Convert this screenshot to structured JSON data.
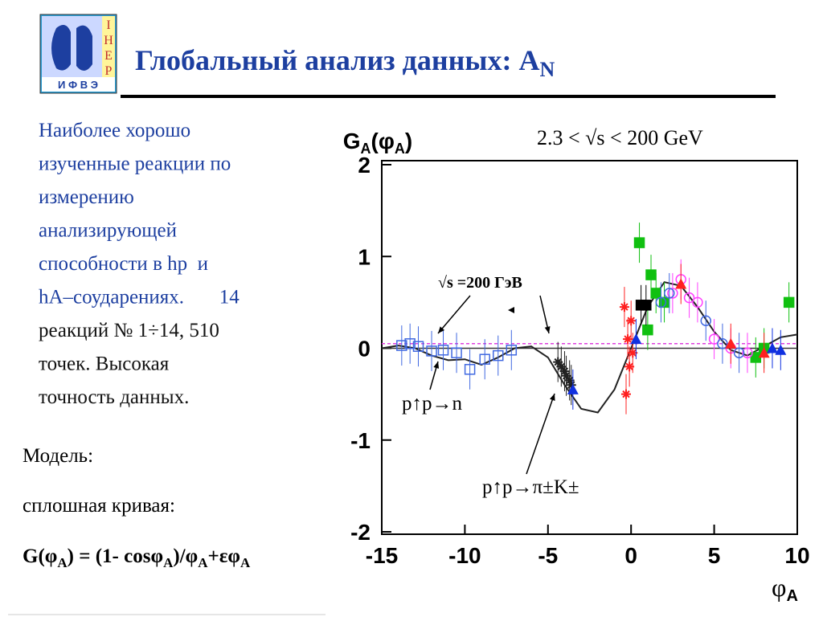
{
  "logo": {
    "letters_bottom": "И Ф В Э",
    "letters_side": [
      "I",
      "H",
      "E",
      "P"
    ]
  },
  "header": {
    "title": "Глобальный анализ данных: A",
    "title_sub": "N"
  },
  "body": {
    "lines": [
      "Наиболее хорошо",
      "изученные реакции по",
      "измерению",
      "анализирующей",
      "способности в hp  и",
      "hA–соударениях.       14",
      "реакций № 1÷14, 510",
      "точек. Высокая",
      "точность данных."
    ],
    "model": "Модель:",
    "curve_label": "сплошная кривая:",
    "formula": [
      {
        "text": "G(φ"
      },
      {
        "text": "A",
        "sub": true
      },
      {
        "text": ") = (1- cosφ"
      },
      {
        "text": "A",
        "sub": true
      },
      {
        "text": ")/φ"
      },
      {
        "text": "A",
        "sub": true
      },
      {
        "text": "+εφ"
      },
      {
        "text": "A",
        "sub": true
      }
    ]
  },
  "chart_data": {
    "type": "scatter",
    "y_label": "G",
    "y_label_sub": "A",
    "y_label_mid": "(φ",
    "y_label_sub2": "A",
    "y_label_end": ")",
    "x_label": "φ",
    "x_label_sub": "A",
    "subtitle": "2.3 < √s < 200 GeV",
    "annotations": [
      "√s =200 ГэВ",
      "p↑p→n",
      "p↑p→π±K±"
    ],
    "xlim": [
      -15,
      10
    ],
    "xticks": [
      -15,
      -10,
      -5,
      0,
      5,
      10
    ],
    "ylim": [
      -2,
      2
    ],
    "yticks": [
      -2,
      -1,
      0,
      1,
      2
    ],
    "hlines": [
      {
        "value": 0,
        "color": "#333333",
        "dash": false
      },
      {
        "value": 0.05,
        "color": "#e040e0",
        "dash": true
      }
    ],
    "curve": {
      "color": "#222222",
      "x": [
        -15,
        -14,
        -13,
        -12,
        -11,
        -10,
        -9,
        -8,
        -7,
        -6,
        -5,
        -4,
        -3,
        -2,
        -1,
        0,
        1,
        2,
        3,
        4,
        5,
        6,
        7,
        8,
        9,
        10
      ],
      "values": [
        0.0,
        0.03,
        0.0,
        -0.08,
        -0.13,
        -0.12,
        -0.18,
        -0.1,
        0.0,
        0.02,
        -0.1,
        -0.4,
        -0.66,
        -0.7,
        -0.45,
        0.0,
        0.45,
        0.72,
        0.68,
        0.45,
        0.18,
        -0.02,
        -0.08,
        0.02,
        0.12,
        0.15
      ]
    },
    "series": [
      {
        "color": "#4169e1",
        "marker": "square-open",
        "x": [
          -13.8,
          -13.3,
          -12.8,
          -12,
          -11.3,
          -10.5,
          -9.7,
          -8.8,
          -8,
          -7.2
        ],
        "values": [
          0.03,
          0.05,
          0.02,
          -0.03,
          -0.02,
          -0.05,
          -0.23,
          -0.12,
          -0.08,
          -0.02
        ]
      },
      {
        "color": "#222222",
        "marker": "star",
        "x": [
          -4.4,
          -4.2,
          -4,
          -3.9,
          -3.7,
          -3.6
        ],
        "values": [
          -0.15,
          -0.2,
          -0.25,
          -0.3,
          -0.35,
          -0.4
        ]
      },
      {
        "color": "#ff2020",
        "marker": "star",
        "x": [
          -0.4,
          -0.3,
          -0.2,
          -0.1,
          0,
          0.1
        ],
        "values": [
          0.45,
          -0.5,
          0.1,
          -0.2,
          0.3,
          -0.05
        ]
      },
      {
        "color": "#10c010",
        "marker": "square",
        "x": [
          0.5,
          1,
          1.2,
          1.5,
          2,
          7.5,
          8,
          9.5
        ],
        "values": [
          1.15,
          0.2,
          0.8,
          0.6,
          0.5,
          -0.1,
          0.0,
          0.5
        ]
      },
      {
        "color": "#ff40ff",
        "marker": "circle-open",
        "x": [
          2.5,
          3,
          3.5,
          4,
          5,
          6,
          7
        ],
        "values": [
          0.6,
          0.75,
          0.55,
          0.5,
          0.1,
          0.0,
          -0.05
        ]
      },
      {
        "color": "#4169e1",
        "marker": "circle-open",
        "x": [
          1.8,
          2.3,
          4.5,
          5.5,
          6.5
        ],
        "values": [
          0.5,
          0.6,
          0.3,
          0.05,
          -0.05
        ]
      },
      {
        "color": "#000000",
        "marker": "square",
        "x": [
          0.6,
          0.9
        ],
        "values": [
          0.47,
          0.47
        ]
      },
      {
        "color": "#ff2020",
        "marker": "triangle",
        "x": [
          3,
          6,
          8
        ],
        "values": [
          0.7,
          0.05,
          -0.05
        ]
      },
      {
        "color": "#1030e0",
        "marker": "triangle",
        "x": [
          -3.5,
          0.3,
          8.5,
          9
        ],
        "values": [
          -0.45,
          0.1,
          0.0,
          -0.02
        ]
      }
    ]
  }
}
